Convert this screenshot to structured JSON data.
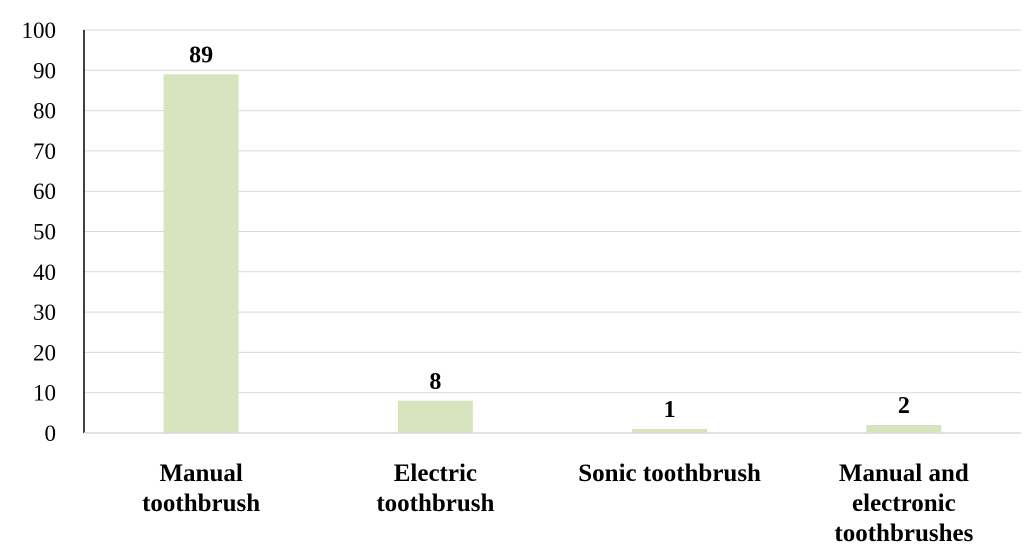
{
  "chart_data": {
    "type": "bar",
    "categories": [
      [
        "Manual",
        "toothbrush"
      ],
      [
        "Electric",
        "toothbrush"
      ],
      [
        "Sonic toothbrush"
      ],
      [
        "Manual and",
        "electronic",
        "toothbrushes"
      ]
    ],
    "values": [
      89,
      8,
      1,
      2
    ],
    "data_labels": [
      "89",
      "8",
      "1",
      "2"
    ],
    "ylim": [
      0,
      100
    ],
    "yticks": [
      0,
      10,
      20,
      30,
      40,
      50,
      60,
      70,
      80,
      90,
      100
    ],
    "grid": true,
    "legend": "none",
    "bar_color": "#d7e4bd",
    "grid_color": "#d9d9d9",
    "axis_color": "#000000"
  }
}
